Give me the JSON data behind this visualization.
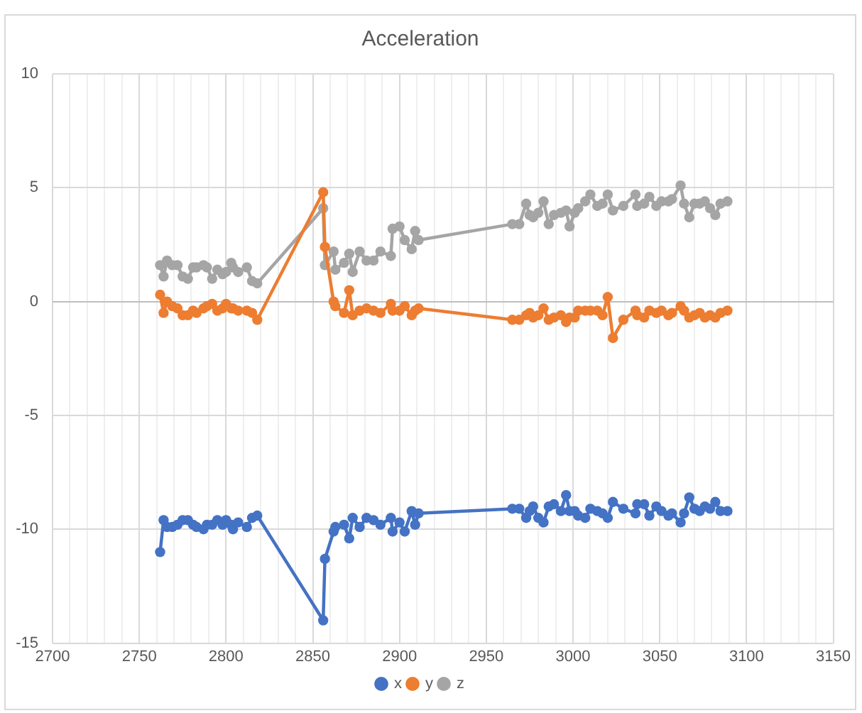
{
  "chart_data": {
    "type": "line",
    "title": "Acceleration",
    "x": [
      2762,
      2764,
      2766,
      2769,
      2772,
      2775,
      2778,
      2781,
      2783,
      2787,
      2789,
      2792,
      2795,
      2798,
      2800,
      2803,
      2804,
      2807,
      2812,
      2815,
      2818,
      2856,
      2857,
      2862,
      2863,
      2868,
      2871,
      2873,
      2877,
      2881,
      2885,
      2889,
      2895,
      2896,
      2900,
      2903,
      2907,
      2909,
      2911,
      2965,
      2969,
      2973,
      2975,
      2977,
      2980,
      2983,
      2986,
      2989,
      2993,
      2996,
      2998,
      3001,
      3003,
      3007,
      3010,
      3014,
      3017,
      3020,
      3023,
      3029,
      3036,
      3037,
      3041,
      3044,
      3048,
      3051,
      3055,
      3057,
      3062,
      3064,
      3067,
      3070,
      3073,
      3076,
      3079,
      3082,
      3085,
      3089
    ],
    "xlim": [
      2700,
      3150
    ],
    "xticks": [
      2700,
      {
        "value": 2710,
        "label": null
      },
      {
        "value": 2720,
        "label": null
      },
      {
        "value": 2730,
        "label": null
      },
      {
        "value": 2740,
        "label": null
      },
      2750,
      {
        "value": 2760,
        "label": null
      },
      {
        "value": 2770,
        "label": null
      },
      {
        "value": 2780,
        "label": null
      },
      {
        "value": 2790,
        "label": null
      },
      2800,
      {
        "value": 2810,
        "label": null
      },
      {
        "value": 2820,
        "label": null
      },
      {
        "value": 2830,
        "label": null
      },
      {
        "value": 2840,
        "label": null
      },
      2850,
      {
        "value": 2860,
        "label": null
      },
      {
        "value": 2870,
        "label": null
      },
      {
        "value": 2880,
        "label": null
      },
      {
        "value": 2890,
        "label": null
      },
      2900,
      {
        "value": 2910,
        "label": null
      },
      {
        "value": 2920,
        "label": null
      },
      {
        "value": 2930,
        "label": null
      },
      {
        "value": 2940,
        "label": null
      },
      2950,
      {
        "value": 2960,
        "label": null
      },
      {
        "value": 2970,
        "label": null
      },
      {
        "value": 2980,
        "label": null
      },
      {
        "value": 2990,
        "label": null
      },
      3000,
      {
        "value": 3010,
        "label": null
      },
      {
        "value": 3020,
        "label": null
      },
      {
        "value": 3030,
        "label": null
      },
      {
        "value": 3040,
        "label": null
      },
      3050,
      {
        "value": 3060,
        "label": null
      },
      {
        "value": 3070,
        "label": null
      },
      {
        "value": 3080,
        "label": null
      },
      {
        "value": 3090,
        "label": null
      },
      3100,
      {
        "value": 3110,
        "label": null
      },
      {
        "value": 3120,
        "label": null
      },
      {
        "value": 3130,
        "label": null
      },
      {
        "value": 3140,
        "label": null
      },
      3150
    ],
    "ylim": [
      -15,
      10
    ],
    "yticks": [
      -15,
      -10,
      -5,
      0,
      5,
      10
    ],
    "grid": true,
    "legend": "bottom",
    "marker": "circle",
    "series": [
      {
        "name": "x",
        "color": "#4472c4",
        "values": [
          -11.0,
          -9.6,
          -9.9,
          -9.9,
          -9.8,
          -9.6,
          -9.6,
          -9.8,
          -9.9,
          -10.0,
          -9.8,
          -9.8,
          -9.6,
          -9.8,
          -9.6,
          -9.8,
          -10.0,
          -9.7,
          -9.9,
          -9.5,
          -9.4,
          -14.0,
          -11.3,
          -10.1,
          -9.9,
          -9.8,
          -10.4,
          -9.5,
          -9.9,
          -9.5,
          -9.6,
          -9.8,
          -9.5,
          -10.1,
          -9.7,
          -10.1,
          -9.2,
          -9.8,
          -9.3,
          -9.1,
          -9.1,
          -9.5,
          -9.2,
          -9.0,
          -9.5,
          -9.7,
          -9.0,
          -8.9,
          -9.2,
          -8.5,
          -9.2,
          -9.2,
          -9.4,
          -9.5,
          -9.1,
          -9.2,
          -9.3,
          -9.5,
          -8.8,
          -9.1,
          -9.3,
          -8.9,
          -8.9,
          -9.4,
          -9.0,
          -9.2,
          -9.4,
          -9.3,
          -9.7,
          -9.3,
          -8.6,
          -9.1,
          -9.2,
          -9.0,
          -9.1,
          -8.8,
          -9.2,
          -9.2
        ]
      },
      {
        "name": "y",
        "color": "#ed7d31",
        "values": [
          0.3,
          -0.5,
          0.0,
          -0.2,
          -0.3,
          -0.6,
          -0.6,
          -0.4,
          -0.5,
          -0.3,
          -0.2,
          -0.1,
          -0.4,
          -0.3,
          -0.1,
          -0.3,
          -0.3,
          -0.4,
          -0.4,
          -0.5,
          -0.8,
          4.8,
          2.4,
          0.0,
          -0.2,
          -0.5,
          0.5,
          -0.6,
          -0.4,
          -0.3,
          -0.4,
          -0.5,
          -0.1,
          -0.4,
          -0.4,
          -0.2,
          -0.6,
          -0.4,
          -0.3,
          -0.8,
          -0.8,
          -0.6,
          -0.5,
          -0.7,
          -0.6,
          -0.3,
          -0.8,
          -0.7,
          -0.6,
          -0.9,
          -0.7,
          -0.7,
          -0.4,
          -0.4,
          -0.4,
          -0.4,
          -0.6,
          0.2,
          -1.6,
          -0.8,
          -0.4,
          -0.6,
          -0.7,
          -0.4,
          -0.5,
          -0.4,
          -0.6,
          -0.5,
          -0.2,
          -0.4,
          -0.7,
          -0.6,
          -0.5,
          -0.7,
          -0.6,
          -0.7,
          -0.5,
          -0.4
        ]
      },
      {
        "name": "z",
        "color": "#a5a5a5",
        "values": [
          1.6,
          1.1,
          1.8,
          1.6,
          1.6,
          1.1,
          1.0,
          1.5,
          1.5,
          1.6,
          1.5,
          1.0,
          1.4,
          1.2,
          1.3,
          1.7,
          1.5,
          1.3,
          1.5,
          0.9,
          0.8,
          4.1,
          1.6,
          2.2,
          1.4,
          1.7,
          2.1,
          1.3,
          2.2,
          1.8,
          1.8,
          2.2,
          2.0,
          3.2,
          3.3,
          2.7,
          2.3,
          3.1,
          2.7,
          3.4,
          3.4,
          4.3,
          3.8,
          3.7,
          3.9,
          4.4,
          3.4,
          3.8,
          3.9,
          4.0,
          3.3,
          3.9,
          4.1,
          4.4,
          4.7,
          4.2,
          4.3,
          4.7,
          4.0,
          4.2,
          4.7,
          4.2,
          4.3,
          4.6,
          4.2,
          4.4,
          4.4,
          4.5,
          5.1,
          4.3,
          3.7,
          4.3,
          4.3,
          4.4,
          4.1,
          3.8,
          4.3,
          4.4
        ]
      }
    ]
  }
}
